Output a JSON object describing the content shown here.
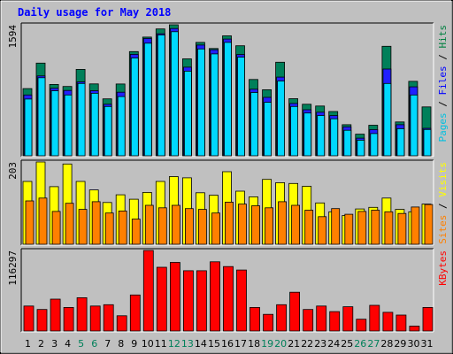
{
  "chart_data": {
    "type": "bar",
    "title": "Daily usage for May 2018",
    "categories": [
      "1",
      "2",
      "3",
      "4",
      "5",
      "6",
      "7",
      "8",
      "9",
      "10",
      "11",
      "12",
      "13",
      "14",
      "15",
      "16",
      "17",
      "18",
      "19",
      "20",
      "21",
      "22",
      "23",
      "24",
      "25",
      "26",
      "27",
      "28",
      "29",
      "30",
      "31"
    ],
    "weekend_days": [
      "5",
      "6",
      "12",
      "13",
      "19",
      "20",
      "26",
      "27"
    ],
    "panels": [
      {
        "name": "hits-files-pages",
        "ymax_label": "1594",
        "ymax": 1594,
        "legend": [
          {
            "text": "Pages",
            "color": "#00c0e0"
          },
          {
            "text": " / ",
            "color": "#000000"
          },
          {
            "text": "Files",
            "color": "#0000ff"
          },
          {
            "text": " / ",
            "color": "#000000"
          },
          {
            "text": "Hits",
            "color": "#008040"
          }
        ],
        "series": [
          {
            "name": "Hits",
            "color": "#00805a",
            "values": [
              817,
              1128,
              868,
              843,
              1051,
              875,
              693,
              874,
              1268,
              1444,
              1543,
              1594,
              1179,
              1380,
              1305,
              1459,
              1339,
              928,
              803,
              1138,
              695,
              627,
              605,
              539,
              378,
              263,
              372,
              1332,
              411,
              906,
              594
            ]
          },
          {
            "name": "Files",
            "color": "#2020ff",
            "values": [
              740,
              972,
              822,
              795,
              899,
              792,
              627,
              773,
              1234,
              1428,
              1485,
              1549,
              1078,
              1347,
              1290,
              1421,
              1232,
              810,
              711,
              958,
              636,
              560,
              530,
              489,
              352,
              214,
              319,
              1055,
              378,
              839,
              334
            ]
          },
          {
            "name": "Pages",
            "color": "#00d8ff",
            "values": [
              690,
              950,
              790,
              740,
              880,
              760,
              600,
              720,
              1190,
              1370,
              1470,
              1510,
              1030,
              1300,
              1240,
              1380,
              1200,
              770,
              650,
              910,
              600,
              520,
              490,
              450,
              310,
              190,
              270,
              880,
              330,
              740,
              320
            ]
          }
        ]
      },
      {
        "name": "visits-sites",
        "ymax_label": "203",
        "ymax": 203,
        "legend": [
          {
            "text": "Sites",
            "color": "#ff8000"
          },
          {
            "text": " / ",
            "color": "#000000"
          },
          {
            "text": "Visits",
            "color": "#ffff00"
          }
        ],
        "series": [
          {
            "name": "Visits",
            "color": "#ffff00",
            "values": [
              155,
              203,
              142,
              198,
              155,
              134,
              103,
              122,
              111,
              128,
              155,
              167,
              164,
              127,
              121,
              179,
              131,
              117,
              160,
              152,
              150,
              143,
              102,
              80,
              71,
              87,
              91,
              114,
              86,
              80,
              99
            ]
          },
          {
            "name": "Sites",
            "color": "#ff8000",
            "values": [
              107,
              114,
              81,
              101,
              86,
              105,
              77,
              82,
              62,
              96,
              90,
              96,
              88,
              86,
              77,
              104,
              99,
              95,
              90,
              105,
              96,
              84,
              68,
              88,
              74,
              81,
              84,
              80,
              76,
              92,
              98
            ]
          }
        ]
      },
      {
        "name": "kbytes",
        "ymax_label": "116297",
        "ymax": 116297,
        "legend": [
          {
            "text": "KBytes",
            "color": "#ff0000"
          }
        ],
        "series": [
          {
            "name": "KBytes",
            "color": "#ff0000",
            "values": [
              36000,
              31000,
              46000,
              34000,
              48000,
              36000,
              38000,
              22000,
              52000,
              116297,
              92000,
              99000,
              87000,
              87000,
              100000,
              93000,
              88000,
              34000,
              24000,
              38000,
              56000,
              31000,
              36000,
              28000,
              35000,
              17000,
              37000,
              27000,
              23000,
              7000,
              34000
            ]
          }
        ]
      }
    ]
  }
}
